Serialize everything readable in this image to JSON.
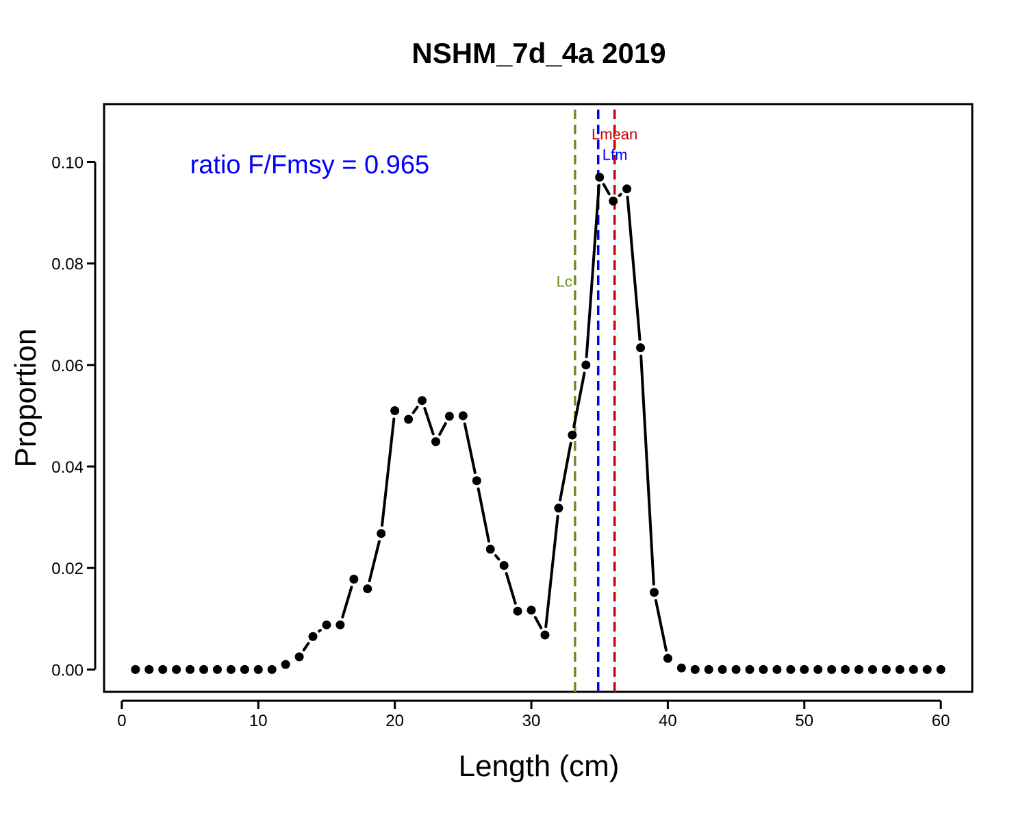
{
  "chart_data": {
    "type": "line",
    "title": "NSHM_7d_4a 2019",
    "xlabel": "Length (cm)",
    "ylabel": "Proportion",
    "xlim": [
      -1.3,
      62.3
    ],
    "ylim": [
      -0.0044,
      0.1114
    ],
    "xticks": [
      0,
      10,
      20,
      30,
      40,
      50,
      60
    ],
    "xtick_labels": [
      "0",
      "10",
      "20",
      "30",
      "40",
      "50",
      "60"
    ],
    "yticks": [
      0.0,
      0.02,
      0.04,
      0.06,
      0.08,
      0.1
    ],
    "ytick_labels": [
      "0.00",
      "0.02",
      "0.04",
      "0.06",
      "0.08",
      "0.10"
    ],
    "grid": false,
    "annotation": {
      "text": "ratio F/Fmsy = 0.965",
      "color": "#0000ff",
      "x": 5,
      "y": 0.0995
    },
    "series": [
      {
        "color": "#000000",
        "x": [
          1,
          2,
          3,
          4,
          5,
          6,
          7,
          8,
          9,
          10,
          11,
          12,
          13,
          14,
          15,
          16,
          17,
          18,
          19,
          20,
          21,
          22,
          23,
          24,
          25,
          26,
          27,
          28,
          29,
          30,
          31,
          32,
          33,
          34,
          35,
          36,
          37,
          38,
          39,
          40,
          41,
          42,
          43,
          44,
          45,
          46,
          47,
          48,
          49,
          50,
          51,
          52,
          53,
          54,
          55,
          56,
          57,
          58,
          59,
          60
        ],
        "values": [
          0,
          0,
          0,
          0,
          0,
          0,
          0,
          0,
          0,
          0,
          0,
          0.001,
          0.0025,
          0.0065,
          0.0088,
          0.0088,
          0.0178,
          0.0159,
          0.0268,
          0.051,
          0.0493,
          0.053,
          0.0449,
          0.0499,
          0.05,
          0.0372,
          0.0237,
          0.0205,
          0.0115,
          0.0117,
          0.0068,
          0.0318,
          0.0462,
          0.06,
          0.097,
          0.0923,
          0.0947,
          0.0634,
          0.0152,
          0.0022,
          0.0003,
          0,
          0,
          0,
          0,
          0,
          0,
          0,
          0,
          0,
          0,
          0,
          0,
          0,
          0,
          0,
          0,
          0,
          0,
          0
        ]
      }
    ],
    "reference_lines": [
      {
        "name": "Lc",
        "x": 33.2,
        "color": "#6b8e23",
        "label_y": 0.0765
      },
      {
        "name": "Lfm",
        "x": 34.9,
        "color": "#0000ff",
        "label_y": 0.1015
      },
      {
        "name": "Lmean",
        "x": 36.1,
        "color": "#cc0000",
        "label_y": 0.1055
      }
    ]
  }
}
